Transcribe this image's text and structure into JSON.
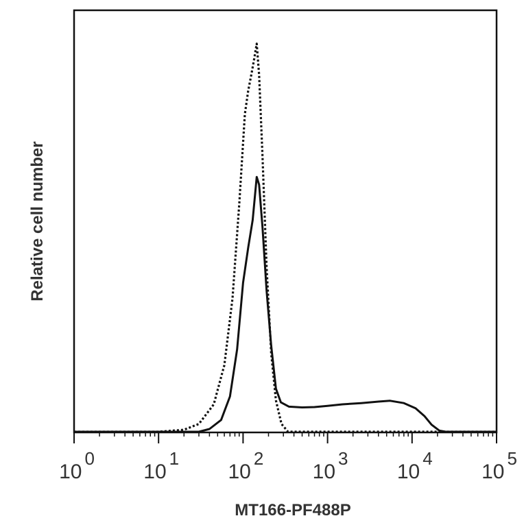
{
  "chart_data": {
    "type": "line",
    "subtype": "flow-cytometry histogram",
    "xscale": "log",
    "xlim": [
      1,
      100000
    ],
    "ylim": [
      0,
      1
    ],
    "xlabel": "MT166-PF488P",
    "ylabel": "Relative cell number",
    "grid": false,
    "legend": "none",
    "x_ticks": [
      {
        "base": "10",
        "exp": "0",
        "value": 1
      },
      {
        "base": "10",
        "exp": "1",
        "value": 10
      },
      {
        "base": "10",
        "exp": "2",
        "value": 100
      },
      {
        "base": "10",
        "exp": "3",
        "value": 1000
      },
      {
        "base": "10",
        "exp": "4",
        "value": 10000
      },
      {
        "base": "10",
        "exp": "5",
        "value": 100000
      }
    ],
    "series": [
      {
        "style": "dotted",
        "color": "#111111",
        "points": [
          [
            1,
            0
          ],
          [
            10,
            0
          ],
          [
            20,
            0.005
          ],
          [
            30,
            0.02
          ],
          [
            45,
            0.07
          ],
          [
            60,
            0.17
          ],
          [
            75,
            0.34
          ],
          [
            90,
            0.58
          ],
          [
            105,
            0.81
          ],
          [
            115,
            0.87
          ],
          [
            125,
            0.91
          ],
          [
            135,
            0.95
          ],
          [
            145,
            0.99
          ],
          [
            155,
            0.91
          ],
          [
            170,
            0.7
          ],
          [
            190,
            0.42
          ],
          [
            215,
            0.2
          ],
          [
            245,
            0.08
          ],
          [
            285,
            0.02
          ],
          [
            340,
            0.0
          ],
          [
            100000,
            0
          ]
        ]
      },
      {
        "style": "solid",
        "color": "#111111",
        "points": [
          [
            1,
            0
          ],
          [
            30,
            0
          ],
          [
            40,
            0.007
          ],
          [
            55,
            0.03
          ],
          [
            70,
            0.09
          ],
          [
            85,
            0.21
          ],
          [
            100,
            0.38
          ],
          [
            115,
            0.47
          ],
          [
            130,
            0.54
          ],
          [
            145,
            0.65
          ],
          [
            155,
            0.63
          ],
          [
            170,
            0.52
          ],
          [
            190,
            0.36
          ],
          [
            215,
            0.22
          ],
          [
            245,
            0.11
          ],
          [
            280,
            0.075
          ],
          [
            350,
            0.064
          ],
          [
            500,
            0.062
          ],
          [
            700,
            0.063
          ],
          [
            1000,
            0.066
          ],
          [
            1500,
            0.07
          ],
          [
            2500,
            0.073
          ],
          [
            4000,
            0.077
          ],
          [
            5500,
            0.079
          ],
          [
            8000,
            0.073
          ],
          [
            11000,
            0.06
          ],
          [
            14000,
            0.04
          ],
          [
            17000,
            0.018
          ],
          [
            21000,
            0.003
          ],
          [
            25000,
            0
          ],
          [
            100000,
            0
          ]
        ]
      }
    ]
  }
}
